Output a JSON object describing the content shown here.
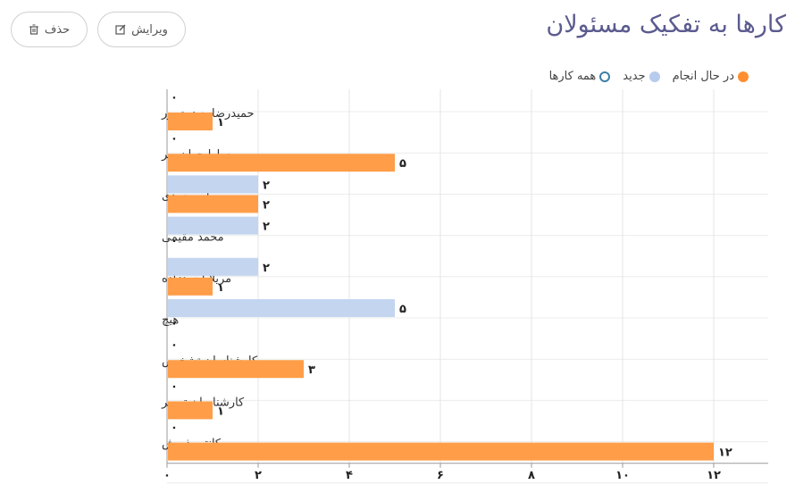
{
  "page": {
    "title": "کارها به تفکیک مسئولان",
    "edit_label": "ویرایش",
    "delete_label": "حذف"
  },
  "legend": [
    {
      "label": "در حال انجام",
      "color": "#ff8f2e",
      "style": "filled"
    },
    {
      "label": "جدید",
      "color": "#b7cbec",
      "style": "filled"
    },
    {
      "label": "همه کارها",
      "color": "#3b7fa6",
      "style": "ring"
    }
  ],
  "chart_data": {
    "type": "bar",
    "orientation": "horizontal",
    "categories": [
      "حمیدرضا حیدری‌پور",
      "سارا جهان‌مهر",
      "سهیل محمدی",
      "محمد مقیمی",
      "مریلا احمدزاده",
      "هیچ",
      "کارشناسان تشخیص",
      "کارشناسان تعمیر",
      "کانتر پذیرش"
    ],
    "series": [
      {
        "name": "جدید",
        "color": "#c3d5ef",
        "values": [
          0,
          0,
          2,
          2,
          2,
          5,
          0,
          0,
          0
        ]
      },
      {
        "name": "در حال انجام",
        "color": "#ff9d48",
        "values": [
          1,
          5,
          2,
          0,
          1,
          0,
          3,
          1,
          12
        ]
      }
    ],
    "xlim": [
      0,
      12
    ],
    "xticks": [
      0,
      2,
      4,
      6,
      8,
      10,
      12
    ],
    "tick_labels": [
      "۰",
      "۲",
      "۴",
      "۶",
      "۸",
      "۱۰",
      "۱۲"
    ],
    "value_labels": {
      "0": "۰",
      "1": "۱",
      "2": "۲",
      "3": "۳",
      "5": "۵",
      "12": "۱۲"
    },
    "grid": true,
    "legend_position": "top-right"
  }
}
